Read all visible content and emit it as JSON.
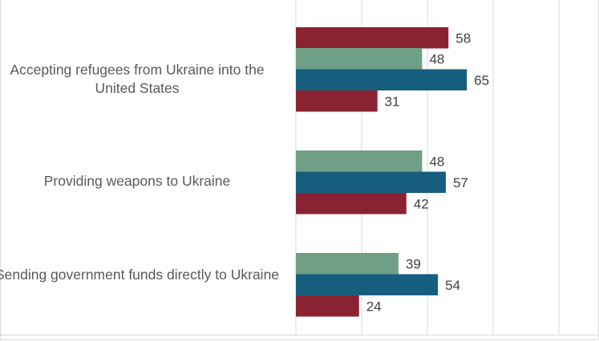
{
  "chart_data": {
    "type": "bar",
    "orientation": "horizontal",
    "categories": [
      "",
      "Accepting refugees from Ukraine into the United States",
      "Providing weapons to Ukraine",
      "Sending government funds directly to Ukraine"
    ],
    "series": [
      {
        "color": "#6fa087",
        "values": [
          null,
          48,
          48,
          39
        ]
      },
      {
        "color": "#175e7e",
        "values": [
          null,
          65,
          57,
          54
        ]
      },
      {
        "color": "#8a2331",
        "values": [
          58,
          31,
          42,
          24
        ]
      }
    ],
    "xlim": [
      0,
      115
    ],
    "grid": true,
    "data_labels": true,
    "label_color": "#404040",
    "grid_color": "#d9d9d9"
  }
}
